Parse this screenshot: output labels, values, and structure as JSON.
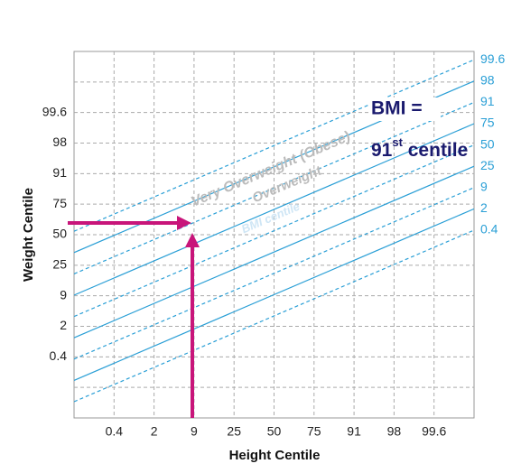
{
  "x_axis": {
    "label": "Height Centile",
    "ticks": [
      "0.4",
      "2",
      "9",
      "25",
      "50",
      "75",
      "91",
      "98",
      "99.6"
    ]
  },
  "y_axis": {
    "label": "Weight Centile",
    "ticks": [
      "0.4",
      "2",
      "9",
      "25",
      "50",
      "75",
      "91",
      "98",
      "99.6"
    ]
  },
  "centile_lines": [
    "0.4",
    "2",
    "9",
    "25",
    "50",
    "75",
    "91",
    "98",
    "99.6"
  ],
  "annotations": {
    "obese": "Very Overweight (Obese)",
    "overweight": "Overweight",
    "bmi_centile": "BMI centile",
    "result_title": "BMI =",
    "result": {
      "number": "91",
      "suffix": "st",
      "word": " centile"
    }
  }
}
